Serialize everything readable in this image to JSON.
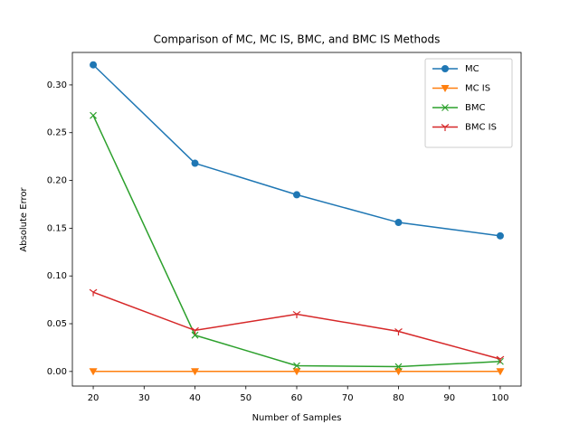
{
  "chart_data": {
    "type": "line",
    "title": "Comparison of MC, MC IS, BMC, and BMC IS Methods",
    "xlabel": "Number of Samples",
    "ylabel": "Absolute Error",
    "x": [
      20,
      40,
      60,
      80,
      100
    ],
    "series": [
      {
        "name": "MC",
        "color": "#1f77b4",
        "marker": "circle",
        "values": [
          0.321,
          0.218,
          0.185,
          0.156,
          0.142
        ]
      },
      {
        "name": "MC IS",
        "color": "#ff7f0e",
        "marker": "triangle-down",
        "values": [
          0.0001,
          0.0001,
          0.0001,
          0.0001,
          0.0001
        ]
      },
      {
        "name": "BMC",
        "color": "#2ca02c",
        "marker": "x",
        "values": [
          0.268,
          0.038,
          0.006,
          0.005,
          0.0105
        ]
      },
      {
        "name": "BMC IS",
        "color": "#d62728",
        "marker": "tri-down",
        "values": [
          0.083,
          0.043,
          0.06,
          0.042,
          0.013
        ]
      }
    ],
    "xlim": [
      15.9,
      104.1
    ],
    "ylim": [
      -0.0153,
      0.334
    ],
    "xticks": [
      20,
      30,
      40,
      50,
      60,
      70,
      80,
      90,
      100
    ],
    "yticks": [
      {
        "value": 0,
        "label": "0.00"
      },
      {
        "value": 0.05,
        "label": "0.05"
      },
      {
        "value": 0.1,
        "label": "0.10"
      },
      {
        "value": 0.15,
        "label": "0.15"
      },
      {
        "value": 0.2,
        "label": "0.20"
      },
      {
        "value": 0.25,
        "label": "0.25"
      },
      {
        "value": 0.3,
        "label": "0.30"
      }
    ],
    "legend": "upper right"
  }
}
